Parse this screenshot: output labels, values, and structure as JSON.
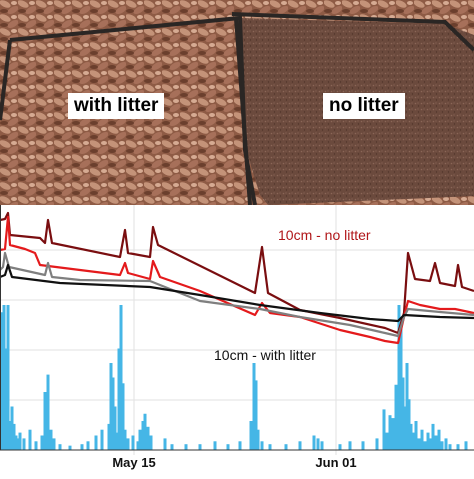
{
  "photo": {
    "left_label": "with litter",
    "right_label": "no litter"
  },
  "chart_data": {
    "type": "line",
    "title": "",
    "xlabel": "",
    "ylabel": "",
    "x_ticks": [
      "May 15",
      "Jun 01"
    ],
    "annotations": [
      "10cm - no litter",
      "10cm - with litter"
    ],
    "grid": true,
    "legend": "none",
    "colors": {
      "dark_red": "#7a0e10",
      "red": "#e41a1c",
      "gray": "#7f7f7f",
      "black": "#111111",
      "rain": "#45b6e6"
    },
    "line_series": [
      {
        "color": "dark_red",
        "points": [
          [
            0,
            15
          ],
          [
            5,
            14
          ],
          [
            8,
            8
          ],
          [
            10,
            30
          ],
          [
            40,
            33
          ],
          [
            45,
            38
          ],
          [
            48,
            15
          ],
          [
            52,
            38
          ],
          [
            120,
            52
          ],
          [
            125,
            25
          ],
          [
            128,
            48
          ],
          [
            150,
            52
          ],
          [
            153,
            22
          ],
          [
            158,
            40
          ],
          [
            255,
            88
          ],
          [
            262,
            42
          ],
          [
            268,
            88
          ],
          [
            300,
            105
          ],
          [
            340,
            113
          ],
          [
            385,
            123
          ],
          [
            398,
            128
          ],
          [
            404,
            108
          ],
          [
            408,
            48
          ],
          [
            415,
            74
          ],
          [
            430,
            76
          ],
          [
            435,
            58
          ],
          [
            440,
            78
          ],
          [
            455,
            81
          ],
          [
            458,
            60
          ],
          [
            462,
            82
          ],
          [
            474,
            86
          ]
        ]
      },
      {
        "color": "red",
        "points": [
          [
            0,
            45
          ],
          [
            5,
            44
          ],
          [
            8,
            12
          ],
          [
            10,
            40
          ],
          [
            25,
            44
          ],
          [
            35,
            48
          ],
          [
            40,
            60
          ],
          [
            120,
            70
          ],
          [
            125,
            58
          ],
          [
            128,
            68
          ],
          [
            150,
            74
          ],
          [
            153,
            56
          ],
          [
            160,
            72
          ],
          [
            200,
            86
          ],
          [
            255,
            110
          ],
          [
            262,
            98
          ],
          [
            270,
            108
          ],
          [
            300,
            112
          ],
          [
            340,
            125
          ],
          [
            370,
            132
          ],
          [
            385,
            136
          ],
          [
            398,
            138
          ],
          [
            404,
            112
          ],
          [
            408,
            96
          ],
          [
            420,
            100
          ],
          [
            440,
            104
          ],
          [
            455,
            104
          ],
          [
            474,
            108
          ]
        ]
      },
      {
        "color": "gray",
        "points": [
          [
            0,
            65
          ],
          [
            3,
            62
          ],
          [
            5,
            48
          ],
          [
            9,
            62
          ],
          [
            45,
            70
          ],
          [
            48,
            58
          ],
          [
            52,
            72
          ],
          [
            80,
            75
          ],
          [
            150,
            76
          ],
          [
            200,
            96
          ],
          [
            260,
            104
          ],
          [
            300,
            112
          ],
          [
            350,
            120
          ],
          [
            385,
            128
          ],
          [
            398,
            131
          ],
          [
            404,
            112
          ],
          [
            408,
            104
          ],
          [
            440,
            107
          ],
          [
            474,
            110
          ]
        ]
      },
      {
        "color": "black",
        "points": [
          [
            0,
            72
          ],
          [
            5,
            70
          ],
          [
            8,
            60
          ],
          [
            12,
            72
          ],
          [
            60,
            78
          ],
          [
            150,
            82
          ],
          [
            200,
            90
          ],
          [
            260,
            100
          ],
          [
            320,
            108
          ],
          [
            370,
            114
          ],
          [
            398,
            116
          ],
          [
            404,
            110
          ],
          [
            440,
            112
          ],
          [
            474,
            113
          ]
        ]
      }
    ],
    "rain_bars": [
      [
        2,
        95
      ],
      [
        4,
        100
      ],
      [
        6,
        70
      ],
      [
        8,
        100
      ],
      [
        10,
        20
      ],
      [
        12,
        30
      ],
      [
        14,
        18
      ],
      [
        16,
        10
      ],
      [
        18,
        8
      ],
      [
        20,
        12
      ],
      [
        24,
        8
      ],
      [
        30,
        14
      ],
      [
        36,
        6
      ],
      [
        42,
        10
      ],
      [
        45,
        40
      ],
      [
        48,
        52
      ],
      [
        51,
        14
      ],
      [
        54,
        8
      ],
      [
        60,
        4
      ],
      [
        70,
        3
      ],
      [
        82,
        4
      ],
      [
        88,
        6
      ],
      [
        96,
        10
      ],
      [
        102,
        14
      ],
      [
        109,
        18
      ],
      [
        111,
        60
      ],
      [
        113,
        50
      ],
      [
        115,
        30
      ],
      [
        117,
        12
      ],
      [
        119,
        70
      ],
      [
        121,
        100
      ],
      [
        123,
        46
      ],
      [
        125,
        14
      ],
      [
        128,
        8
      ],
      [
        133,
        10
      ],
      [
        138,
        6
      ],
      [
        140,
        14
      ],
      [
        143,
        20
      ],
      [
        145,
        25
      ],
      [
        148,
        16
      ],
      [
        151,
        10
      ],
      [
        165,
        8
      ],
      [
        172,
        4
      ],
      [
        186,
        4
      ],
      [
        200,
        4
      ],
      [
        215,
        6
      ],
      [
        228,
        4
      ],
      [
        240,
        6
      ],
      [
        251,
        20
      ],
      [
        254,
        60
      ],
      [
        256,
        48
      ],
      [
        258,
        14
      ],
      [
        262,
        6
      ],
      [
        270,
        4
      ],
      [
        286,
        4
      ],
      [
        300,
        6
      ],
      [
        314,
        10
      ],
      [
        318,
        8
      ],
      [
        322,
        6
      ],
      [
        340,
        4
      ],
      [
        350,
        6
      ],
      [
        363,
        6
      ],
      [
        377,
        8
      ],
      [
        384,
        28
      ],
      [
        387,
        12
      ],
      [
        390,
        24
      ],
      [
        393,
        22
      ],
      [
        396,
        45
      ],
      [
        399,
        100
      ],
      [
        401,
        90
      ],
      [
        403,
        50
      ],
      [
        405,
        30
      ],
      [
        407,
        60
      ],
      [
        409,
        35
      ],
      [
        411,
        18
      ],
      [
        413,
        12
      ],
      [
        416,
        20
      ],
      [
        419,
        8
      ],
      [
        422,
        14
      ],
      [
        425,
        6
      ],
      [
        428,
        12
      ],
      [
        430,
        8
      ],
      [
        433,
        18
      ],
      [
        436,
        10
      ],
      [
        439,
        14
      ],
      [
        442,
        6
      ],
      [
        446,
        8
      ],
      [
        450,
        4
      ],
      [
        458,
        4
      ],
      [
        466,
        6
      ]
    ]
  }
}
